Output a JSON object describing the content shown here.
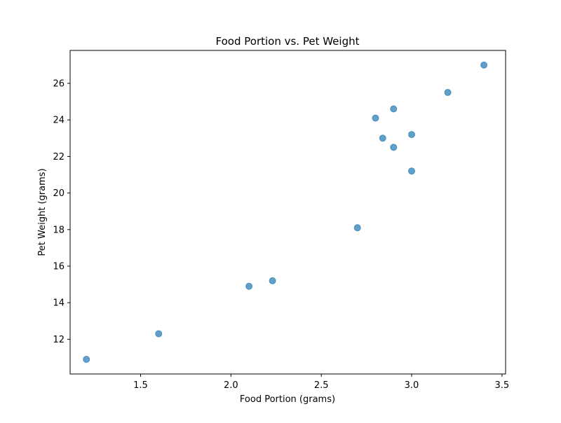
{
  "chart_data": {
    "type": "scatter",
    "title": "Food Portion vs. Pet Weight",
    "xlabel": "Food Portion (grams)",
    "ylabel": "Pet Weight (grams)",
    "xlim": [
      1.11,
      3.52
    ],
    "ylim": [
      10.1,
      27.8
    ],
    "xticks": [
      1.5,
      2.0,
      2.5,
      3.0,
      3.5
    ],
    "xtick_labels": [
      "1.5",
      "2.0",
      "2.5",
      "3.0",
      "3.5"
    ],
    "yticks": [
      12,
      14,
      16,
      18,
      20,
      22,
      24,
      26
    ],
    "ytick_labels": [
      "12",
      "14",
      "16",
      "18",
      "20",
      "22",
      "24",
      "26"
    ],
    "grid": false,
    "marker_color": "#1f77b4",
    "marker_alpha": 0.7,
    "points": [
      {
        "x": 1.2,
        "y": 10.9
      },
      {
        "x": 1.6,
        "y": 12.3
      },
      {
        "x": 2.1,
        "y": 14.9
      },
      {
        "x": 2.23,
        "y": 15.2
      },
      {
        "x": 2.7,
        "y": 18.1
      },
      {
        "x": 2.8,
        "y": 24.1
      },
      {
        "x": 2.84,
        "y": 23.0
      },
      {
        "x": 2.9,
        "y": 24.6
      },
      {
        "x": 2.9,
        "y": 22.5
      },
      {
        "x": 3.0,
        "y": 23.2
      },
      {
        "x": 3.0,
        "y": 21.2
      },
      {
        "x": 3.2,
        "y": 25.5
      },
      {
        "x": 3.4,
        "y": 27.0
      }
    ]
  }
}
